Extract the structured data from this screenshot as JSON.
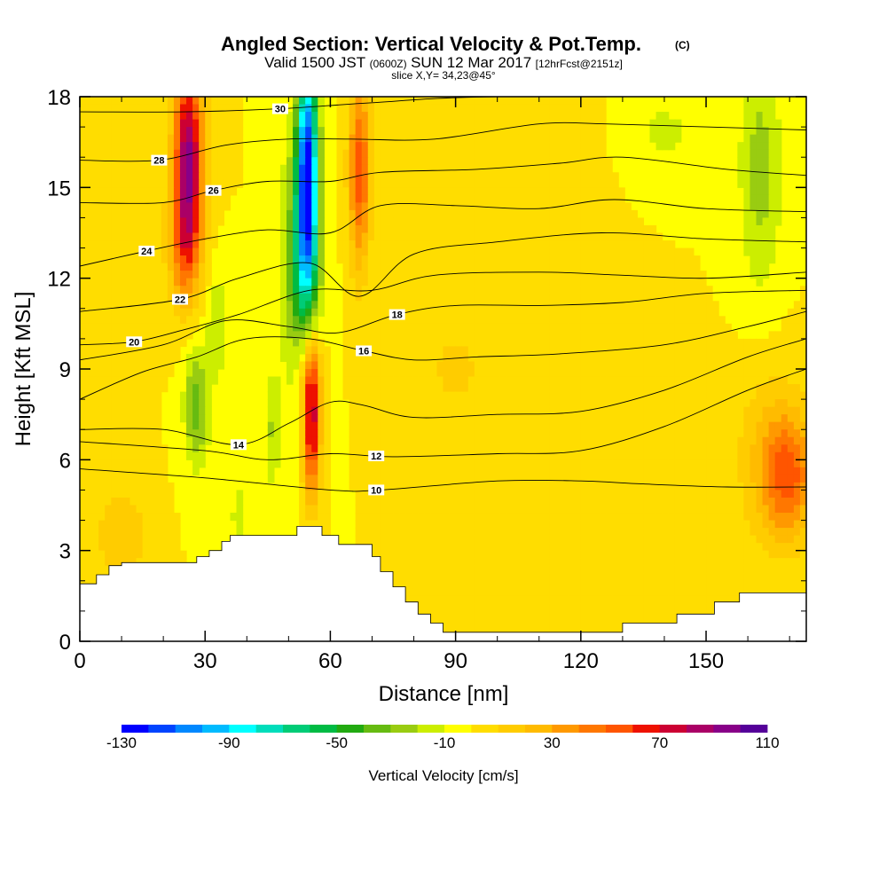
{
  "chart_data": {
    "type": "heatmap",
    "title": "Angled Section: Vertical Velocity & Pot.Temp.",
    "title_suffix": "(C)",
    "subtitle": {
      "prefix": "Valid 1500 JST",
      "utc": "(0600Z)",
      "date": "SUN 12 Mar 2017",
      "forecast": "[12hrFcst@2151z]"
    },
    "slice_label": "slice X,Y= 34,23@45°",
    "xlabel": "Distance [nm]",
    "ylabel": "Height [Kft MSL]",
    "xlim": [
      0,
      174
    ],
    "ylim": [
      0,
      18
    ],
    "x_ticks": [
      {
        "value": 0,
        "label": "0"
      },
      {
        "value": 30,
        "label": "30"
      },
      {
        "value": 60,
        "label": "60"
      },
      {
        "value": 90,
        "label": "90"
      },
      {
        "value": 120,
        "label": "120"
      },
      {
        "value": 150,
        "label": "150"
      }
    ],
    "y_ticks": [
      {
        "value": 0,
        "label": "0"
      },
      {
        "value": 3,
        "label": "3"
      },
      {
        "value": 6,
        "label": "6"
      },
      {
        "value": 9,
        "label": "9"
      },
      {
        "value": 12,
        "label": "12"
      },
      {
        "value": 15,
        "label": "15"
      },
      {
        "value": 18,
        "label": "18"
      }
    ],
    "colorbar": {
      "title": "Vertical Velocity [cm/s]",
      "min": -130,
      "max": 110,
      "step": 10,
      "tick_labels": [
        {
          "value": -130,
          "label": "-130"
        },
        {
          "value": -90,
          "label": "-90"
        },
        {
          "value": -50,
          "label": "-50"
        },
        {
          "value": -10,
          "label": "-10"
        },
        {
          "value": 30,
          "label": "30"
        },
        {
          "value": 70,
          "label": "70"
        },
        {
          "value": 110,
          "label": "110"
        }
      ],
      "colors": [
        "#0000ff",
        "#0044ff",
        "#0088ff",
        "#00bbff",
        "#00ffff",
        "#00ddbb",
        "#00cc77",
        "#00bb44",
        "#22aa11",
        "#66bb11",
        "#99cc11",
        "#ccee00",
        "#ffff00",
        "#ffdd00",
        "#ffcc00",
        "#ffbb00",
        "#ff9900",
        "#ff7700",
        "#ff5500",
        "#ee1100",
        "#cc0033",
        "#aa0066",
        "#880088",
        "#550099"
      ]
    },
    "background_value": 0,
    "velocity_features": [
      {
        "name": "downdraft-core",
        "x": 54.5,
        "y": 15.5,
        "sx": 2.4,
        "sy": 4.0,
        "v": -115
      },
      {
        "name": "downdraft-upper",
        "x": 53,
        "y": 12.5,
        "sx": 4.5,
        "sy": 4.0,
        "v": -45
      },
      {
        "name": "updraft-left",
        "x": 26,
        "y": 16.0,
        "sx": 3.5,
        "sy": 3.2,
        "v": 90
      },
      {
        "name": "updraft-left-lower",
        "x": 25,
        "y": 13.0,
        "sx": 4.0,
        "sy": 2.0,
        "v": 35
      },
      {
        "name": "updraft-right",
        "x": 67,
        "y": 15.5,
        "sx": 2.5,
        "sy": 3.2,
        "v": 55
      },
      {
        "name": "updraft-mid",
        "x": 55.5,
        "y": 7.2,
        "sx": 2.0,
        "sy": 2.4,
        "v": 80
      },
      {
        "name": "updraft-mid-upper",
        "x": 55,
        "y": 9.0,
        "sx": 3.0,
        "sy": 1.5,
        "v": 30
      },
      {
        "name": "down-left-mid",
        "x": 28,
        "y": 7.8,
        "sx": 3.0,
        "sy": 2.0,
        "v": -35
      },
      {
        "name": "down-left-upper",
        "x": 33,
        "y": 10.5,
        "sx": 2.5,
        "sy": 1.8,
        "v": -20
      },
      {
        "name": "down-mid-low",
        "x": 46,
        "y": 7.0,
        "sx": 2.0,
        "sy": 2.0,
        "v": -20
      },
      {
        "name": "down-left-low",
        "x": 38,
        "y": 4.2,
        "sx": 2.0,
        "sy": 1.2,
        "v": -15
      },
      {
        "name": "down-right-top",
        "x": 163,
        "y": 15.5,
        "sx": 5.0,
        "sy": 4.0,
        "v": -25
      },
      {
        "name": "up-right-low",
        "x": 170,
        "y": 5.5,
        "sx": 6.0,
        "sy": 2.0,
        "v": 45
      },
      {
        "name": "up-right-low-wide",
        "x": 165,
        "y": 6.0,
        "sx": 8.0,
        "sy": 3.0,
        "v": 20
      },
      {
        "name": "up-far-left",
        "x": 10,
        "y": 3.5,
        "sx": 6.0,
        "sy": 1.5,
        "v": 20
      },
      {
        "name": "up-lowband",
        "x": 90,
        "y": 9.0,
        "sx": 6.0,
        "sy": 1.3,
        "v": 15
      },
      {
        "name": "down-right-mid",
        "x": 140,
        "y": 16.8,
        "sx": 10.0,
        "sy": 1.5,
        "v": -12
      },
      {
        "name": "up-right-upper",
        "x": 100,
        "y": 16.0,
        "sx": 20.0,
        "sy": 2.5,
        "v": 10
      }
    ],
    "terrain": {
      "x": [
        0,
        4,
        4,
        7,
        7,
        10,
        10,
        28,
        28,
        31,
        31,
        34,
        34,
        36,
        36,
        52,
        52,
        58,
        58,
        62,
        62,
        70,
        70,
        72,
        72,
        75,
        75,
        78,
        78,
        81,
        81,
        84,
        84,
        87,
        87,
        90,
        90,
        130,
        130,
        143,
        143,
        152,
        152,
        158,
        158,
        174
      ],
      "y": [
        1.9,
        1.9,
        2.2,
        2.2,
        2.5,
        2.5,
        2.6,
        2.6,
        2.8,
        2.8,
        3.0,
        3.0,
        3.3,
        3.3,
        3.5,
        3.5,
        3.8,
        3.8,
        3.5,
        3.5,
        3.2,
        3.2,
        2.8,
        2.8,
        2.3,
        2.3,
        1.8,
        1.8,
        1.3,
        1.3,
        0.9,
        0.9,
        0.6,
        0.6,
        0.3,
        0.3,
        0.3,
        0.3,
        0.6,
        0.6,
        0.9,
        0.9,
        1.3,
        1.3,
        1.6,
        1.6
      ]
    },
    "isentropes": [
      {
        "level": 10,
        "label": "10",
        "label_x": 71,
        "points": [
          [
            0,
            5.7
          ],
          [
            30,
            5.4
          ],
          [
            60,
            5.0
          ],
          [
            72,
            5.0
          ],
          [
            100,
            5.3
          ],
          [
            120,
            5.3
          ],
          [
            135,
            5.2
          ],
          [
            155,
            5.1
          ],
          [
            174,
            5.1
          ]
        ]
      },
      {
        "level": 12,
        "label": "12",
        "label_x": 71,
        "points": [
          [
            0,
            6.6
          ],
          [
            30,
            6.3
          ],
          [
            45,
            6.0
          ],
          [
            60,
            6.2
          ],
          [
            75,
            6.1
          ],
          [
            100,
            6.2
          ],
          [
            120,
            6.3
          ],
          [
            140,
            7.1
          ],
          [
            160,
            8.3
          ],
          [
            174,
            9.0
          ]
        ]
      },
      {
        "level": 14,
        "label": "14",
        "label_x": 38,
        "points": [
          [
            0,
            7.0
          ],
          [
            20,
            7.0
          ],
          [
            38,
            6.5
          ],
          [
            50,
            7.2
          ],
          [
            60,
            7.9
          ],
          [
            68,
            7.8
          ],
          [
            80,
            7.4
          ],
          [
            100,
            7.5
          ],
          [
            120,
            7.6
          ],
          [
            140,
            8.3
          ],
          [
            160,
            9.4
          ],
          [
            174,
            10.0
          ]
        ]
      },
      {
        "level": 16,
        "label": "16",
        "label_x": 68,
        "points": [
          [
            0,
            8.0
          ],
          [
            15,
            8.9
          ],
          [
            28,
            9.4
          ],
          [
            40,
            10.0
          ],
          [
            55,
            10.0
          ],
          [
            68,
            9.6
          ],
          [
            80,
            9.3
          ],
          [
            95,
            9.4
          ],
          [
            115,
            9.5
          ],
          [
            140,
            9.8
          ],
          [
            160,
            10.4
          ],
          [
            174,
            10.9
          ]
        ]
      },
      {
        "level": 18,
        "label": "18",
        "label_x": 76,
        "points": [
          [
            0,
            9.3
          ],
          [
            20,
            9.8
          ],
          [
            35,
            10.6
          ],
          [
            50,
            10.4
          ],
          [
            62,
            10.2
          ],
          [
            76,
            10.8
          ],
          [
            90,
            11.1
          ],
          [
            110,
            11.1
          ],
          [
            130,
            11.2
          ],
          [
            150,
            11.5
          ],
          [
            174,
            11.6
          ]
        ]
      },
      {
        "level": 20,
        "label": "20",
        "label_x": 13,
        "points": [
          [
            0,
            9.8
          ],
          [
            13,
            9.9
          ],
          [
            25,
            10.3
          ],
          [
            38,
            10.8
          ],
          [
            55,
            11.6
          ],
          [
            70,
            11.6
          ],
          [
            85,
            12.1
          ],
          [
            110,
            12.2
          ],
          [
            130,
            12.1
          ],
          [
            150,
            12.0
          ],
          [
            174,
            12.2
          ]
        ]
      },
      {
        "level": 22,
        "label": "22",
        "label_x": 24,
        "points": [
          [
            0,
            10.9
          ],
          [
            24,
            11.3
          ],
          [
            38,
            12.0
          ],
          [
            55,
            12.5
          ],
          [
            67,
            11.4
          ],
          [
            80,
            12.8
          ],
          [
            100,
            13.2
          ],
          [
            125,
            13.5
          ],
          [
            150,
            13.3
          ],
          [
            174,
            13.2
          ]
        ]
      },
      {
        "level": 24,
        "label": "24",
        "label_x": 16,
        "points": [
          [
            0,
            12.4
          ],
          [
            16,
            12.9
          ],
          [
            30,
            13.3
          ],
          [
            45,
            13.6
          ],
          [
            60,
            13.5
          ],
          [
            72,
            14.4
          ],
          [
            90,
            14.4
          ],
          [
            110,
            14.3
          ],
          [
            128,
            14.6
          ],
          [
            150,
            14.3
          ],
          [
            174,
            14.2
          ]
        ]
      },
      {
        "level": 26,
        "label": "26",
        "label_x": 32,
        "points": [
          [
            0,
            14.5
          ],
          [
            20,
            14.5
          ],
          [
            32,
            14.9
          ],
          [
            45,
            15.2
          ],
          [
            60,
            15.2
          ],
          [
            72,
            15.5
          ],
          [
            95,
            15.6
          ],
          [
            115,
            15.8
          ],
          [
            130,
            16.0
          ],
          [
            155,
            15.6
          ],
          [
            174,
            15.4
          ]
        ]
      },
      {
        "level": 28,
        "label": "28",
        "label_x": 19,
        "points": [
          [
            0,
            15.9
          ],
          [
            19,
            15.9
          ],
          [
            35,
            16.4
          ],
          [
            50,
            16.6
          ],
          [
            65,
            16.6
          ],
          [
            85,
            16.6
          ],
          [
            110,
            17.1
          ],
          [
            126,
            17.1
          ],
          [
            150,
            17.0
          ],
          [
            174,
            16.9
          ]
        ]
      },
      {
        "level": 30,
        "label": "30",
        "label_x": 48,
        "points": [
          [
            0,
            17.5
          ],
          [
            25,
            17.5
          ],
          [
            48,
            17.6
          ],
          [
            70,
            17.8
          ],
          [
            100,
            18.0
          ],
          [
            174,
            18.0
          ]
        ]
      }
    ]
  }
}
